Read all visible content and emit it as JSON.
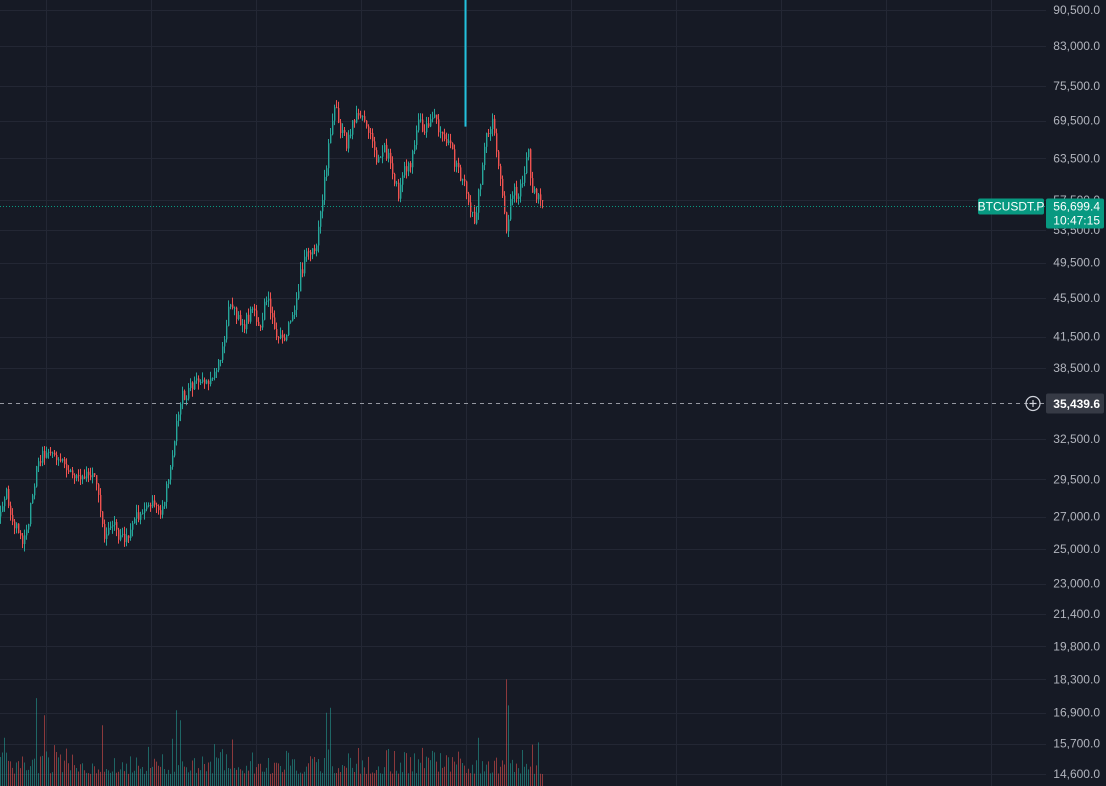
{
  "symbol": "BTCUSDT.P",
  "last_price": "56,699.4",
  "countdown": "10:47:15",
  "crosshair_price": "35,439.6",
  "colors": {
    "background": "#161a25",
    "grid": "#232734",
    "up": "#26a69a",
    "down": "#ef5350",
    "price_badge": "#089981",
    "crosshair_badge": "#363a45",
    "marker_line": "#22c1dd",
    "axis_text": "#b2b5be"
  },
  "chart_data": {
    "type": "candlestick",
    "title": "",
    "xlabel": "",
    "ylabel": "",
    "y_scale": "log",
    "ylim": [
      14300,
      92000
    ],
    "grid": true,
    "y_ticks": [
      "90,500.0",
      "83,000.0",
      "75,500.0",
      "69,500.0",
      "63,500.0",
      "57,500.0",
      "53,500.0",
      "49,500.0",
      "45,500.0",
      "41,500.0",
      "38,500.0",
      "35,439.6",
      "32,500.0",
      "29,500.0",
      "27,000.0",
      "25,000.0",
      "23,000.0",
      "21,400.0",
      "19,800.0",
      "18,300.0",
      "16,900.0",
      "15,700.0",
      "14,600.0"
    ],
    "y_tick_values": [
      90500,
      83000,
      75500,
      69500,
      63500,
      57500,
      53500,
      49500,
      45500,
      41500,
      38500,
      32500,
      29500,
      27000,
      25000,
      23000,
      21400,
      19800,
      18300,
      16900,
      15700,
      14600
    ],
    "last_value": 56699.4,
    "crosshair_value": 35439.6,
    "marker_from_value": 68500,
    "path_anchors": [
      [
        0,
        27000
      ],
      [
        6,
        28500
      ],
      [
        14,
        26500
      ],
      [
        22,
        25200
      ],
      [
        30,
        27500
      ],
      [
        38,
        31000
      ],
      [
        48,
        31500
      ],
      [
        58,
        31300
      ],
      [
        68,
        30200
      ],
      [
        78,
        29600
      ],
      [
        88,
        29700
      ],
      [
        96,
        29500
      ],
      [
        104,
        25800
      ],
      [
        112,
        26800
      ],
      [
        120,
        25600
      ],
      [
        128,
        25500
      ],
      [
        136,
        26900
      ],
      [
        144,
        27300
      ],
      [
        152,
        27800
      ],
      [
        160,
        27300
      ],
      [
        168,
        29500
      ],
      [
        174,
        32500
      ],
      [
        180,
        35800
      ],
      [
        188,
        36400
      ],
      [
        196,
        37500
      ],
      [
        204,
        36800
      ],
      [
        212,
        38000
      ],
      [
        220,
        39000
      ],
      [
        228,
        44500
      ],
      [
        236,
        43600
      ],
      [
        244,
        42800
      ],
      [
        252,
        44200
      ],
      [
        260,
        42500
      ],
      [
        266,
        45800
      ],
      [
        272,
        43000
      ],
      [
        278,
        41000
      ],
      [
        286,
        42000
      ],
      [
        294,
        44000
      ],
      [
        300,
        48000
      ],
      [
        308,
        51000
      ],
      [
        316,
        51500
      ],
      [
        322,
        57500
      ],
      [
        328,
        65000
      ],
      [
        334,
        72000
      ],
      [
        340,
        68000
      ],
      [
        346,
        66000
      ],
      [
        352,
        69000
      ],
      [
        360,
        70500
      ],
      [
        368,
        68000
      ],
      [
        376,
        63000
      ],
      [
        384,
        65000
      ],
      [
        392,
        62000
      ],
      [
        398,
        58000
      ],
      [
        404,
        61500
      ],
      [
        410,
        63000
      ],
      [
        418,
        69000
      ],
      [
        424,
        68500
      ],
      [
        432,
        70500
      ],
      [
        440,
        67500
      ],
      [
        448,
        66000
      ],
      [
        456,
        62000
      ],
      [
        462,
        60500
      ],
      [
        468,
        57000
      ],
      [
        474,
        54500
      ],
      [
        480,
        60500
      ],
      [
        486,
        67500
      ],
      [
        492,
        69000
      ],
      [
        496,
        65500
      ],
      [
        500,
        60000
      ],
      [
        506,
        53000
      ],
      [
        512,
        59000
      ],
      [
        518,
        58000
      ],
      [
        524,
        62000
      ],
      [
        528,
        64000
      ],
      [
        532,
        59000
      ],
      [
        538,
        57500
      ],
      [
        542,
        56699.4
      ]
    ],
    "volume_peaks": [
      [
        36,
        17500
      ],
      [
        44,
        16800
      ],
      [
        102,
        16400
      ],
      [
        176,
        17000
      ],
      [
        180,
        16600
      ],
      [
        326,
        16900
      ],
      [
        330,
        17100
      ],
      [
        506,
        18300
      ],
      [
        508,
        17200
      ]
    ]
  }
}
